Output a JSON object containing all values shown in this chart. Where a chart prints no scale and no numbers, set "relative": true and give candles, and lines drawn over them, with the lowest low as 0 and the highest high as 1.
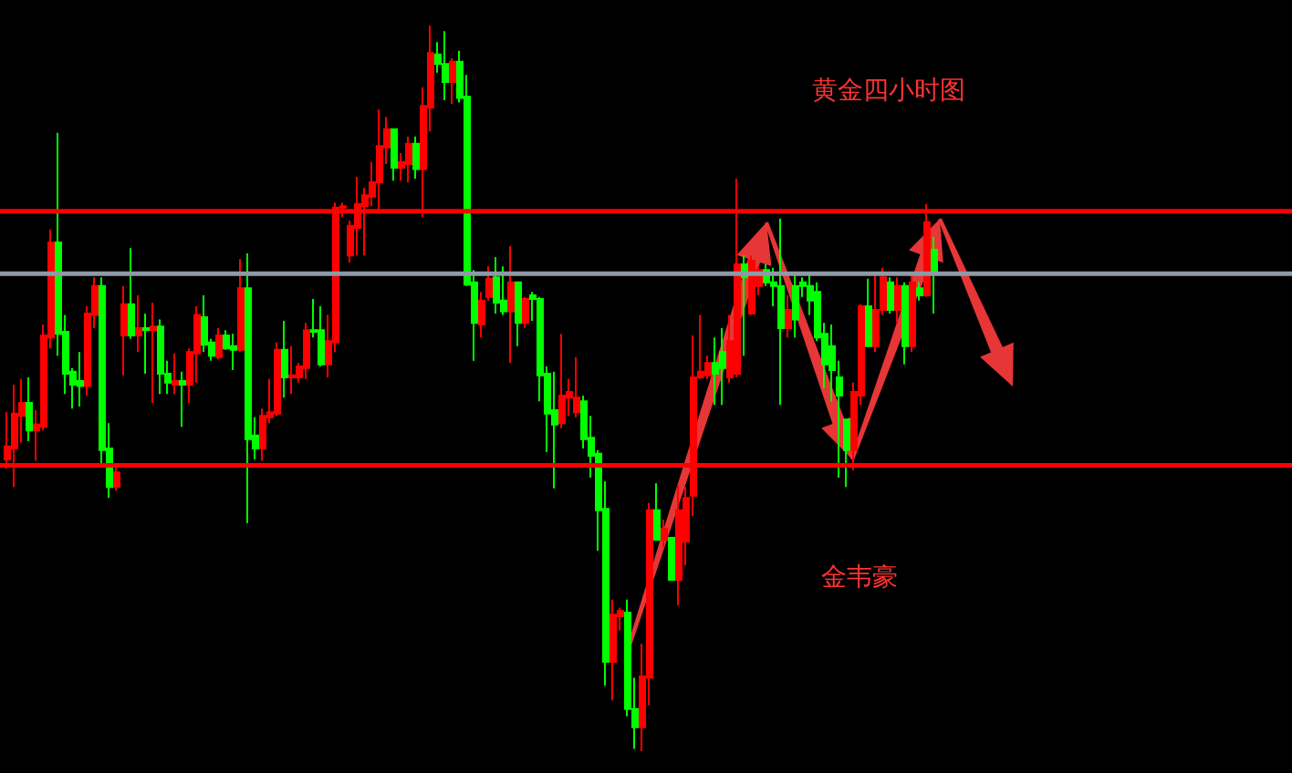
{
  "chart_data": {
    "type": "candlestick",
    "title": "黄金四小时图",
    "annotations": [
      "金韦豪"
    ],
    "relative": true,
    "categories": [
      null,
      null,
      null,
      null,
      null,
      null,
      null,
      null,
      null,
      null,
      null,
      null,
      null,
      null,
      null,
      null,
      null,
      null,
      null,
      null,
      null,
      null,
      null,
      null,
      null,
      null,
      null,
      null,
      null,
      null,
      null,
      null,
      null,
      null,
      null,
      null,
      null,
      null,
      null,
      null,
      null,
      null,
      null,
      null,
      null,
      null,
      null,
      null,
      null,
      null,
      null,
      null,
      null,
      null,
      null,
      null,
      null,
      null,
      null,
      null,
      null,
      null,
      null,
      null,
      null,
      null,
      null,
      null,
      null,
      null,
      null,
      null,
      null,
      null,
      null,
      null,
      null,
      null,
      null,
      null,
      null,
      null,
      null,
      null,
      null,
      null,
      null,
      null,
      null,
      null,
      null,
      null,
      null,
      null,
      null,
      null,
      null,
      null,
      null,
      null,
      null,
      null,
      null,
      null,
      null,
      null,
      null,
      null,
      null,
      null,
      null,
      null,
      null,
      null,
      null,
      null,
      null,
      null,
      null,
      null,
      null,
      null,
      null,
      null,
      null,
      null,
      null,
      null
    ],
    "ohlc": [
      [
        0.402,
        0.467,
        0.389,
        0.42
      ],
      [
        0.417,
        0.505,
        0.364,
        0.465
      ],
      [
        0.462,
        0.513,
        0.425,
        0.48
      ],
      [
        0.48,
        0.515,
        0.427,
        0.442
      ],
      [
        0.442,
        0.47,
        0.4,
        0.45
      ],
      [
        0.447,
        0.588,
        0.442,
        0.573
      ],
      [
        0.57,
        0.719,
        0.555,
        0.701
      ],
      [
        0.701,
        0.852,
        0.545,
        0.575
      ],
      [
        0.578,
        0.601,
        0.492,
        0.52
      ],
      [
        0.523,
        0.528,
        0.472,
        0.505
      ],
      [
        0.51,
        0.55,
        0.475,
        0.503
      ],
      [
        0.503,
        0.613,
        0.49,
        0.603
      ],
      [
        0.601,
        0.653,
        0.583,
        0.641
      ],
      [
        0.641,
        0.653,
        0.397,
        0.415
      ],
      [
        0.417,
        0.452,
        0.349,
        0.364
      ],
      [
        0.364,
        0.394,
        0.359,
        0.384
      ],
      [
        0.573,
        0.641,
        0.518,
        0.616
      ],
      [
        0.616,
        0.693,
        0.568,
        0.573
      ],
      [
        0.573,
        0.628,
        0.55,
        0.583
      ],
      [
        0.583,
        0.603,
        0.52,
        0.58
      ],
      [
        0.58,
        0.618,
        0.48,
        0.585
      ],
      [
        0.585,
        0.595,
        0.492,
        0.52
      ],
      [
        0.52,
        0.538,
        0.492,
        0.508
      ],
      [
        0.505,
        0.548,
        0.492,
        0.51
      ],
      [
        0.51,
        0.523,
        0.447,
        0.505
      ],
      [
        0.505,
        0.555,
        0.48,
        0.55
      ],
      [
        0.548,
        0.613,
        0.508,
        0.601
      ],
      [
        0.598,
        0.628,
        0.55,
        0.56
      ],
      [
        0.563,
        0.568,
        0.538,
        0.545
      ],
      [
        0.543,
        0.583,
        0.54,
        0.573
      ],
      [
        0.573,
        0.58,
        0.553,
        0.555
      ],
      [
        0.558,
        0.575,
        0.525,
        0.553
      ],
      [
        0.553,
        0.678,
        0.55,
        0.638
      ],
      [
        0.638,
        0.686,
        0.314,
        0.43
      ],
      [
        0.435,
        0.46,
        0.402,
        0.417
      ],
      [
        0.417,
        0.472,
        0.4,
        0.462
      ],
      [
        0.46,
        0.513,
        0.452,
        0.467
      ],
      [
        0.465,
        0.563,
        0.462,
        0.553
      ],
      [
        0.553,
        0.593,
        0.487,
        0.515
      ],
      [
        0.515,
        0.558,
        0.492,
        0.518
      ],
      [
        0.515,
        0.535,
        0.508,
        0.53
      ],
      [
        0.528,
        0.59,
        0.513,
        0.58
      ],
      [
        0.58,
        0.623,
        0.57,
        0.578
      ],
      [
        0.58,
        0.613,
        0.53,
        0.533
      ],
      [
        0.533,
        0.601,
        0.515,
        0.565
      ],
      [
        0.563,
        0.756,
        0.55,
        0.749
      ],
      [
        0.749,
        0.756,
        0.736,
        0.751
      ],
      [
        0.683,
        0.731,
        0.673,
        0.724
      ],
      [
        0.721,
        0.791,
        0.683,
        0.754
      ],
      [
        0.751,
        0.776,
        0.683,
        0.766
      ],
      [
        0.764,
        0.812,
        0.751,
        0.784
      ],
      [
        0.784,
        0.884,
        0.746,
        0.834
      ],
      [
        0.832,
        0.874,
        0.809,
        0.857
      ],
      [
        0.857,
        0.857,
        0.786,
        0.804
      ],
      [
        0.804,
        0.824,
        0.786,
        0.812
      ],
      [
        0.809,
        0.847,
        0.784,
        0.837
      ],
      [
        0.837,
        0.847,
        0.789,
        0.802
      ],
      [
        0.802,
        0.915,
        0.736,
        0.889
      ],
      [
        0.887,
        1,
        0.854,
        0.962
      ],
      [
        0.96,
        0.977,
        0.935,
        0.947
      ],
      [
        0.947,
        0.992,
        0.897,
        0.922
      ],
      [
        0.922,
        0.955,
        0.892,
        0.95
      ],
      [
        0.95,
        0.965,
        0.894,
        0.9
      ],
      [
        0.902,
        0.932,
        0.641,
        0.643
      ],
      [
        0.646,
        0.663,
        0.538,
        0.59
      ],
      [
        0.588,
        0.633,
        0.57,
        0.621
      ],
      [
        0.626,
        0.668,
        0.621,
        0.651
      ],
      [
        0.653,
        0.681,
        0.603,
        0.618
      ],
      [
        0.621,
        0.668,
        0.601,
        0.606
      ],
      [
        0.606,
        0.696,
        0.535,
        0.646
      ],
      [
        0.646,
        0.646,
        0.558,
        0.59
      ],
      [
        0.59,
        0.626,
        0.583,
        0.623
      ],
      [
        0.628,
        0.633,
        0.593,
        0.623
      ],
      [
        0.623,
        0.626,
        0.482,
        0.518
      ],
      [
        0.52,
        0.53,
        0.412,
        0.465
      ],
      [
        0.47,
        0.523,
        0.362,
        0.45
      ],
      [
        0.452,
        0.575,
        0.445,
        0.49
      ],
      [
        0.487,
        0.513,
        0.462,
        0.495
      ],
      [
        0.467,
        0.543,
        0.46,
        0.487
      ],
      [
        0.482,
        0.49,
        0.417,
        0.43
      ],
      [
        0.432,
        0.462,
        0.377,
        0.407
      ],
      [
        0.41,
        0.415,
        0.276,
        0.332
      ],
      [
        0.334,
        0.372,
        0.09,
        0.123
      ],
      [
        0.123,
        0.209,
        0.07,
        0.188
      ],
      [
        0.186,
        0.198,
        0.166,
        0.193
      ],
      [
        0.191,
        0.209,
        0.048,
        0.058
      ],
      [
        0.058,
        0.101,
        0.003,
        0.033
      ],
      [
        0.033,
        0.148,
        0,
        0.103
      ],
      [
        0.101,
        0.342,
        0.063,
        0.332
      ],
      [
        0.332,
        0.369,
        0.291,
        0.291
      ],
      [
        0.291,
        0.319,
        0.281,
        0.307
      ],
      [
        0.294,
        0.294,
        0.236,
        0.236
      ],
      [
        0.236,
        0.367,
        0.201,
        0.332
      ],
      [
        0.289,
        0.364,
        0.256,
        0.349
      ],
      [
        0.352,
        0.573,
        0.324,
        0.515
      ],
      [
        0.515,
        0.601,
        0.513,
        0.523
      ],
      [
        0.518,
        0.545,
        0.513,
        0.535
      ],
      [
        0.535,
        0.57,
        0.477,
        0.52
      ],
      [
        0.55,
        0.583,
        0.477,
        0.528
      ],
      [
        0.515,
        0.601,
        0.508,
        0.565
      ],
      [
        0.52,
        0.789,
        0.515,
        0.671
      ],
      [
        0.671,
        0.683,
        0.545,
        0.653
      ],
      [
        0.603,
        0.683,
        0.601,
        0.676
      ],
      [
        0.641,
        0.668,
        0.628,
        0.663
      ],
      [
        0.663,
        0.671,
        0.641,
        0.646
      ],
      [
        0.646,
        0.666,
        0.613,
        0.641
      ],
      [
        0.641,
        0.734,
        0.477,
        0.583
      ],
      [
        0.583,
        0.628,
        0.57,
        0.608
      ],
      [
        0.641,
        0.658,
        0.57,
        0.595
      ],
      [
        0.646,
        0.653,
        0.626,
        0.641
      ],
      [
        0.641,
        0.658,
        0.601,
        0.621
      ],
      [
        0.633,
        0.646,
        0.565,
        0.57
      ],
      [
        0.575,
        0.59,
        0.5,
        0.533
      ],
      [
        0.558,
        0.588,
        0.482,
        0.525
      ],
      [
        0.515,
        0.538,
        0.377,
        0.49
      ],
      [
        0.457,
        0.457,
        0.364,
        0.415
      ],
      [
        0.415,
        0.508,
        0.387,
        0.495
      ],
      [
        0.49,
        0.616,
        0.477,
        0.613
      ],
      [
        0.613,
        0.651,
        0.558,
        0.558
      ],
      [
        0.558,
        0.658,
        0.55,
        0.608
      ],
      [
        0.608,
        0.666,
        0.601,
        0.653
      ],
      [
        0.646,
        0.653,
        0.603,
        0.608
      ],
      [
        0.608,
        0.653,
        0.59,
        0.641
      ],
      [
        0.641,
        0.646,
        0.533,
        0.558
      ],
      [
        0.558,
        0.658,
        0.55,
        0.646
      ],
      [
        0.638,
        0.646,
        0.621,
        0.628
      ],
      [
        0.628,
        0.754,
        0.626,
        0.729
      ],
      [
        0.691,
        0.709,
        0.603,
        0.658
      ]
    ],
    "ref_lines": [
      {
        "axis": "y",
        "value": 0.744,
        "color": "#ff0000"
      },
      {
        "axis": "y",
        "value": 0.658,
        "color": "#8e9aa6"
      },
      {
        "axis": "y",
        "value": 0.394,
        "color": "#ff0000"
      }
    ],
    "grid": false
  }
}
